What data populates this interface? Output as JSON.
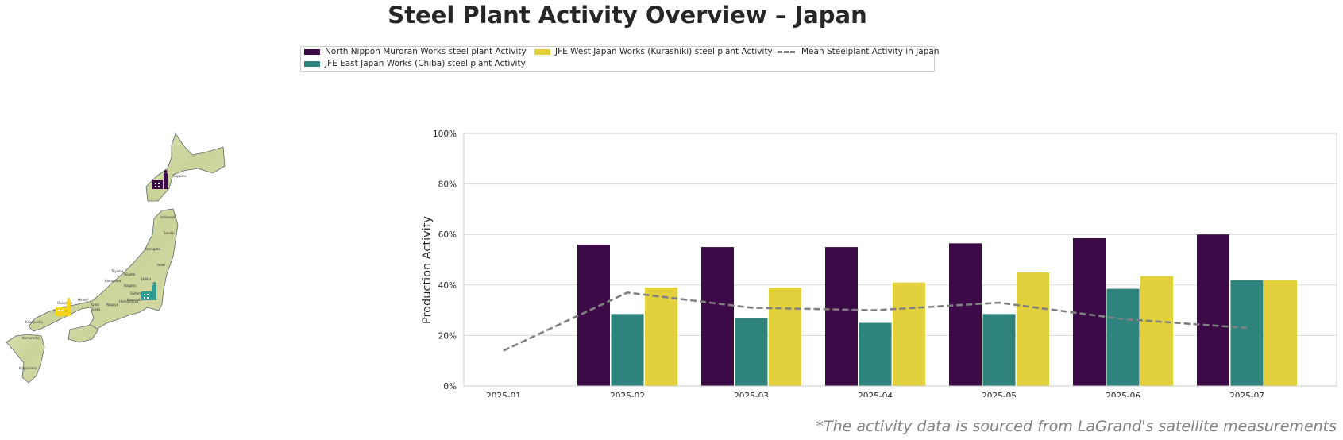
{
  "title": "Steel Plant Activity Overview – Japan",
  "footnote": "*The activity data is sourced from LaGrand's satellite measurements",
  "legend": {
    "items": [
      {
        "label": "North Nippon Muroran Works steel plant Activity",
        "color": "#3b0a47"
      },
      {
        "label": "JFE East Japan Works (Chiba) steel plant Activity",
        "color": "#2e837c"
      },
      {
        "label": "JFE West Japan Works (Kurashiki) steel plant Activity",
        "color": "#e2d03c"
      },
      {
        "label": "Mean Steelplant Activity in Japan",
        "color": "#808080"
      }
    ]
  },
  "map": {
    "labels": [
      "Sapporo",
      "JAPAN",
      "Sendai",
      "Niigata",
      "Saitama",
      "Kawasaki",
      "Kanazawa",
      "Nagoya",
      "Kyoto",
      "Osaka",
      "Hiroshima",
      "Kitakyushu",
      "Kumamoto",
      "Okayama",
      "Himeji",
      "Yamagata",
      "Iwaki",
      "Hamamatsu",
      "Nagano",
      "Toyama",
      "Kagoshima",
      "Ichinoseki"
    ]
  },
  "chart_data": {
    "type": "bar",
    "title": "Steel Plant Activity Overview – Japan",
    "ylabel": "Production Activity",
    "xlabel": "",
    "ylim": [
      0,
      100
    ],
    "yticks": [
      "0%",
      "20%",
      "40%",
      "60%",
      "80%",
      "100%"
    ],
    "categories": [
      "2025-01",
      "2025-02",
      "2025-03",
      "2025-04",
      "2025-05",
      "2025-06",
      "2025-07"
    ],
    "series": [
      {
        "name": "North Nippon Muroran Works steel plant Activity",
        "color": "#3b0a47",
        "values": [
          null,
          56,
          55,
          55,
          56.5,
          58.5,
          60
        ]
      },
      {
        "name": "JFE East Japan Works (Chiba) steel plant Activity",
        "color": "#2e837c",
        "values": [
          null,
          28.5,
          27,
          25,
          28.5,
          38.5,
          42
        ]
      },
      {
        "name": "JFE West Japan Works (Kurashiki) steel plant Activity",
        "color": "#e2d03c",
        "values": [
          null,
          39,
          39,
          41,
          45,
          43.5,
          42
        ]
      }
    ],
    "line": {
      "name": "Mean Steelplant Activity in Japan",
      "color": "#808080",
      "style": "dashed",
      "values": [
        14,
        37,
        31,
        30,
        33,
        26.5,
        23
      ]
    },
    "grid": "horizontal",
    "legend_position": "top-center"
  }
}
